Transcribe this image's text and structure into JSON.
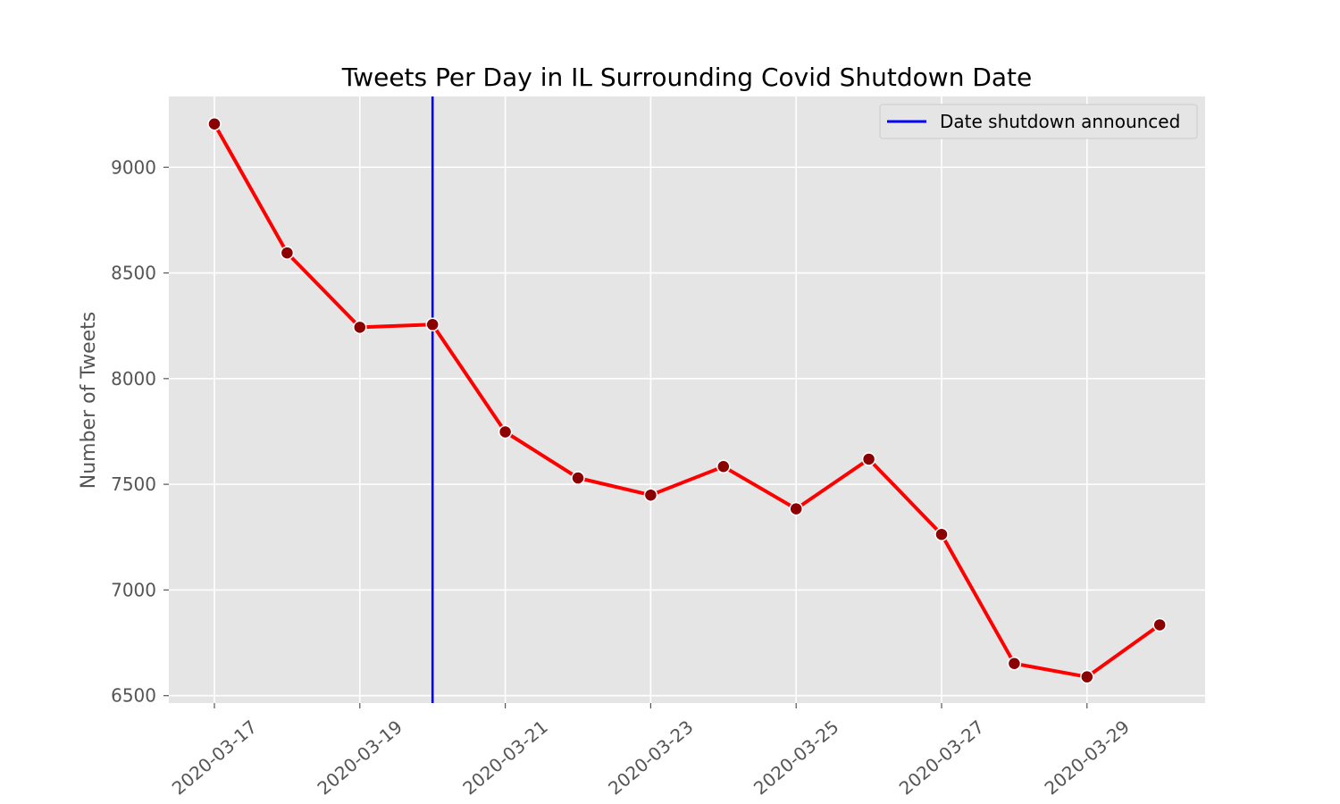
{
  "chart_data": {
    "type": "line",
    "title": "Tweets Per Day in IL Surrounding Covid Shutdown Date",
    "xlabel": "",
    "ylabel": "Number of Tweets",
    "x": [
      "2020-03-17",
      "2020-03-18",
      "2020-03-19",
      "2020-03-20",
      "2020-03-21",
      "2020-03-22",
      "2020-03-23",
      "2020-03-24",
      "2020-03-25",
      "2020-03-26",
      "2020-03-27",
      "2020-03-28",
      "2020-03-29",
      "2020-03-30"
    ],
    "series": [
      {
        "values": [
          9205,
          8595,
          8243,
          8256,
          7748,
          7530,
          7449,
          7584,
          7384,
          7619,
          7263,
          6652,
          6589,
          6835
        ],
        "color": "#ff0000",
        "marker_color": "#8b0000"
      }
    ],
    "xticks": [
      "2020-03-17",
      "2020-03-19",
      "2020-03-21",
      "2020-03-23",
      "2020-03-25",
      "2020-03-27",
      "2020-03-29"
    ],
    "yticks": [
      6500,
      7000,
      7500,
      8000,
      8500,
      9000
    ],
    "ylim": [
      6465,
      9335
    ],
    "xlim": [
      "2020-03-16",
      "2020-03-30"
    ],
    "vline": {
      "x": "2020-03-20",
      "label": "Date shutdown announced",
      "color": "#0000ff"
    },
    "legend_position": "top-right",
    "grid": true,
    "background_color": "#e5e5e5"
  }
}
